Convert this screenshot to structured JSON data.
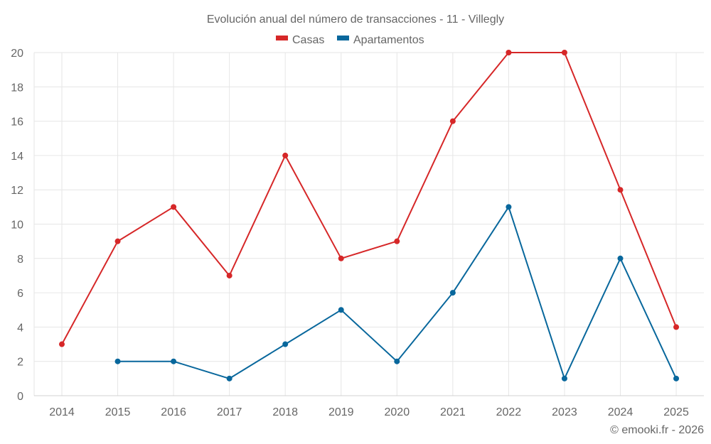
{
  "chart_data": {
    "type": "line",
    "title": "Evolución anual del número de transacciones - 11 - Villegly",
    "xlabel": "",
    "ylabel": "",
    "categories": [
      "2014",
      "2015",
      "2016",
      "2017",
      "2018",
      "2019",
      "2020",
      "2021",
      "2022",
      "2023",
      "2024",
      "2025"
    ],
    "series": [
      {
        "name": "Casas",
        "color": "#d62728",
        "values": [
          3,
          9,
          11,
          7,
          14,
          8,
          9,
          16,
          20,
          20,
          12,
          4
        ]
      },
      {
        "name": "Apartamentos",
        "color": "#08679c",
        "values": [
          null,
          2,
          2,
          1,
          3,
          5,
          2,
          6,
          11,
          1,
          8,
          1
        ]
      }
    ],
    "ylim": [
      0,
      20
    ],
    "yticks": [
      0,
      2,
      4,
      6,
      8,
      10,
      12,
      14,
      16,
      18,
      20
    ],
    "grid": true,
    "legend_position": "top"
  },
  "title": "Evolución anual del número de transacciones - 11 - Villegly",
  "legend": [
    {
      "label": "Casas",
      "color": "#d62728"
    },
    {
      "label": "Apartamentos",
      "color": "#08679c"
    }
  ],
  "credit": "© emooki.fr - 2026"
}
